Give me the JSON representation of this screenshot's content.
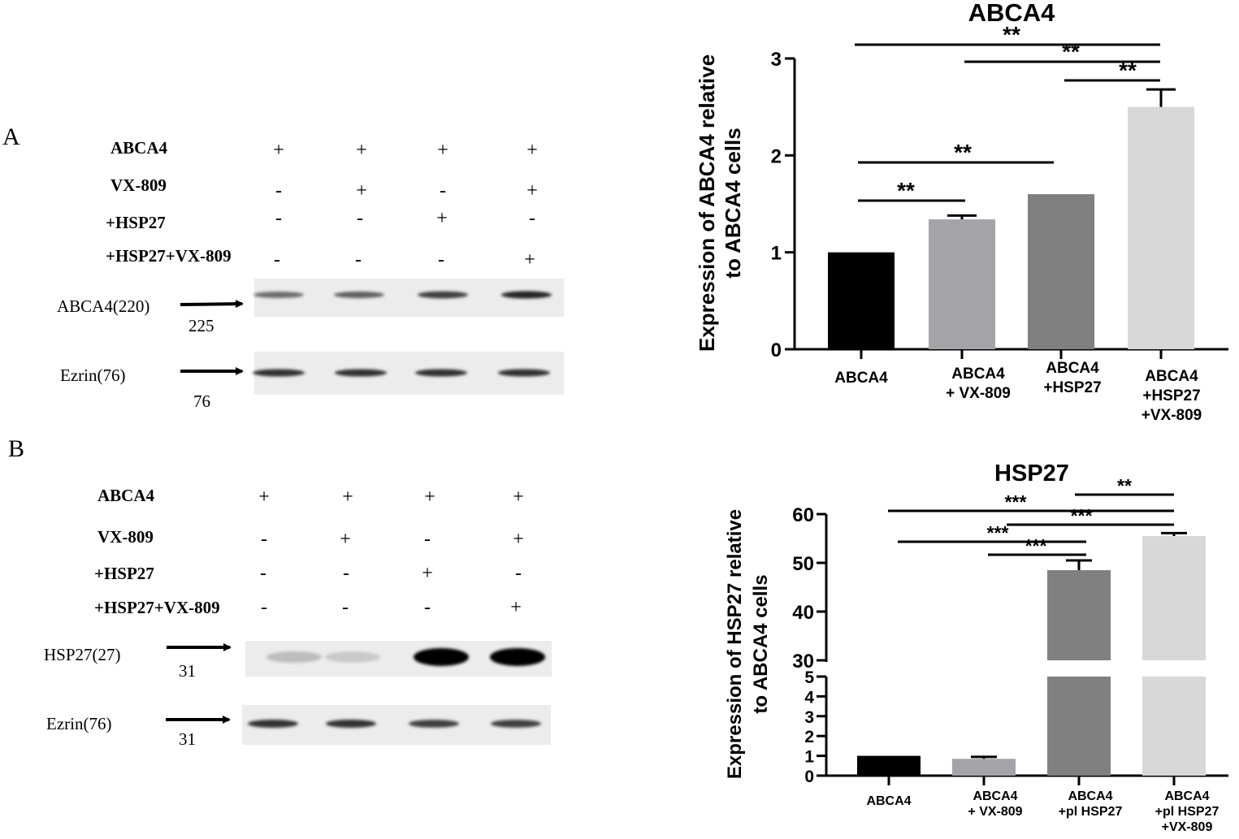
{
  "panels": [
    {
      "letter": "A",
      "conditions": [
        {
          "label": "ABCA4",
          "signs": [
            "+",
            "+",
            "+",
            "+"
          ]
        },
        {
          "label": "VX-809",
          "signs": [
            "-",
            "+",
            "-",
            "+"
          ]
        },
        {
          "label": "+HSP27",
          "signs": [
            "-",
            "-",
            "+",
            "-"
          ]
        },
        {
          "label": "+HSP27+VX-809",
          "signs": [
            "-",
            "-",
            "-",
            "+"
          ]
        }
      ],
      "blots": [
        {
          "label": "ABCA4(220)",
          "marker": "225",
          "band_intensity": [
            0.55,
            0.6,
            0.75,
            0.85
          ]
        },
        {
          "label": "Ezrin(76)",
          "marker": "76",
          "band_intensity": [
            0.8,
            0.8,
            0.8,
            0.8
          ]
        }
      ]
    },
    {
      "letter": "B",
      "conditions": [
        {
          "label": "ABCA4",
          "signs": [
            "+",
            "+",
            "+",
            "+"
          ]
        },
        {
          "label": "VX-809",
          "signs": [
            "-",
            "+",
            "-",
            "+"
          ]
        },
        {
          "label": "+HSP27",
          "signs": [
            "-",
            "-",
            "+",
            "-"
          ]
        },
        {
          "label": "+HSP27+VX-809",
          "signs": [
            "-",
            "-",
            "-",
            "+"
          ]
        }
      ],
      "blots": [
        {
          "label": "HSP27(27)",
          "marker": "31",
          "band_intensity": [
            0.2,
            0.15,
            1.0,
            1.0
          ]
        },
        {
          "label": "Ezrin(76)",
          "marker": "31",
          "band_intensity": [
            0.8,
            0.8,
            0.75,
            0.75
          ]
        }
      ]
    }
  ],
  "chart_data": [
    {
      "type": "bar",
      "title": "ABCA4",
      "ylabel": "Expression of ABCA4 relative to ABCA4 cells",
      "ylim": [
        0,
        3
      ],
      "yticks": [
        "0",
        "1",
        "2",
        "3"
      ],
      "categories": [
        [
          "ABCA4"
        ],
        [
          "ABCA4",
          "+  VX-809"
        ],
        [
          "ABCA4",
          "+HSP27"
        ],
        [
          "ABCA4",
          "+HSP27",
          "+VX-809"
        ]
      ],
      "values": [
        1.0,
        1.34,
        1.6,
        2.5
      ],
      "errors": [
        0,
        0.04,
        0,
        0.18
      ],
      "colors": [
        "#000000",
        "#a4a4a8",
        "#808080",
        "#d8d8d8"
      ],
      "significance": [
        {
          "from": 0,
          "to": 3,
          "label": "**"
        },
        {
          "from": 1,
          "to": 3,
          "label": "**"
        },
        {
          "from": 2,
          "to": 3,
          "label": "**"
        },
        {
          "from": 0,
          "to": 2,
          "label": "**"
        },
        {
          "from": 0,
          "to": 1,
          "label": "**"
        }
      ]
    },
    {
      "type": "bar",
      "title": "HSP27",
      "ylabel": "Expression of HSP27 relative to ABCA4 cells",
      "axis_break": {
        "lower": [
          0,
          5
        ],
        "upper": [
          30,
          60
        ]
      },
      "yticks_lower": [
        "0",
        "1",
        "2",
        "3",
        "4",
        "5"
      ],
      "yticks_upper": [
        "30",
        "40",
        "50",
        "60"
      ],
      "categories": [
        [
          "ABCA4"
        ],
        [
          "ABCA4",
          "+ VX-809"
        ],
        [
          "ABCA4",
          "+pl HSP27"
        ],
        [
          "ABCA4",
          "+pl HSP27",
          "+VX-809"
        ]
      ],
      "values": [
        1.0,
        0.85,
        48.5,
        55.5
      ],
      "errors": [
        0,
        0.1,
        2.0,
        0.6
      ],
      "colors": [
        "#000000",
        "#a4a4a8",
        "#808080",
        "#d8d8d8"
      ],
      "significance": [
        {
          "from": 2,
          "to": 3,
          "label": "**"
        },
        {
          "from": 0,
          "to": 3,
          "label": "***"
        },
        {
          "from": 1,
          "to": 3,
          "label": "***"
        },
        {
          "from": 0,
          "to": 2,
          "label": "***"
        },
        {
          "from": 1,
          "to": 2,
          "label": "***"
        }
      ]
    }
  ]
}
